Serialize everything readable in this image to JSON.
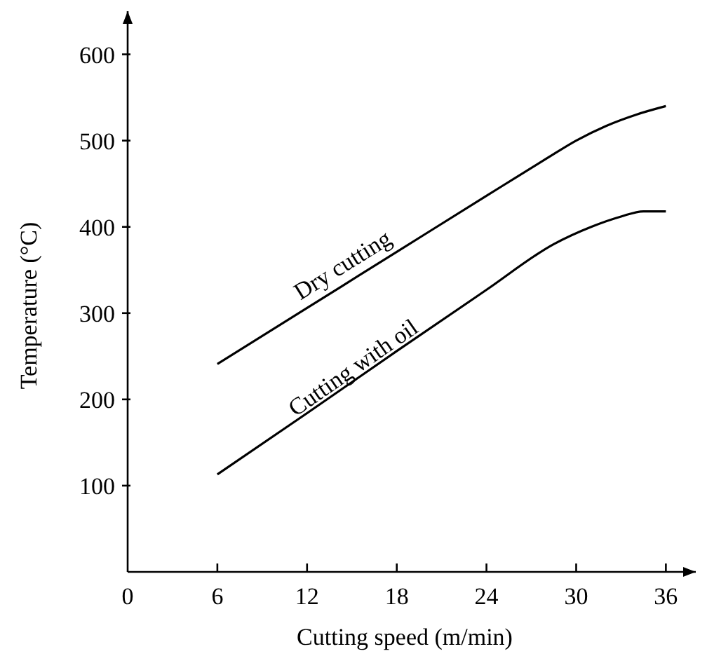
{
  "chart_data": {
    "type": "line",
    "xlabel": "Cutting speed (m/min)",
    "ylabel": "Temperature (°C)",
    "xlim": [
      0,
      38
    ],
    "ylim": [
      0,
      650
    ],
    "xticks": [
      0,
      6,
      12,
      18,
      24,
      30,
      36
    ],
    "yticks": [
      100,
      200,
      300,
      400,
      500,
      600
    ],
    "grid": false,
    "legend": false,
    "marker": "none",
    "line_style": "solid",
    "series": [
      {
        "name": "Dry cutting",
        "color": "#000000",
        "x": [
          6,
          12,
          18,
          24,
          28,
          30,
          32,
          34,
          36
        ],
        "values": [
          241,
          306,
          371,
          436,
          479,
          500,
          517,
          530,
          540
        ]
      },
      {
        "name": "Cutting with oil",
        "color": "#000000",
        "x": [
          6,
          12,
          18,
          24,
          28.5,
          31,
          33,
          34.5,
          36
        ],
        "values": [
          113,
          184,
          256,
          327,
          380,
          400,
          412,
          418,
          418
        ]
      }
    ]
  }
}
